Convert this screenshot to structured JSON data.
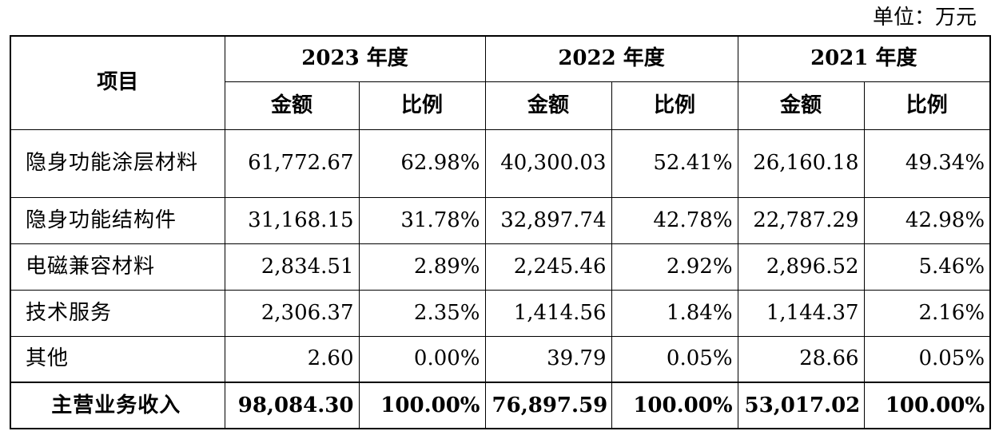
{
  "unit_label": "单位：万元",
  "header": {
    "item": "项目",
    "years": [
      "2023 年度",
      "2022 年度",
      "2021 年度"
    ],
    "amount": "金额",
    "ratio": "比例"
  },
  "rows": [
    {
      "label": "隐身功能涂层材料",
      "cells": [
        "61,772.67",
        "62.98%",
        "40,300.03",
        "52.41%",
        "26,160.18",
        "49.34%"
      ]
    },
    {
      "label": "隐身功能结构件",
      "cells": [
        "31,168.15",
        "31.78%",
        "32,897.74",
        "42.78%",
        "22,787.29",
        "42.98%"
      ]
    },
    {
      "label": "电磁兼容材料",
      "cells": [
        "2,834.51",
        "2.89%",
        "2,245.46",
        "2.92%",
        "2,896.52",
        "5.46%"
      ]
    },
    {
      "label": "技术服务",
      "cells": [
        "2,306.37",
        "2.35%",
        "1,414.56",
        "1.84%",
        "1,144.37",
        "2.16%"
      ]
    },
    {
      "label": "其他",
      "cells": [
        "2.60",
        "0.00%",
        "39.79",
        "0.05%",
        "28.66",
        "0.05%"
      ]
    }
  ],
  "total": {
    "label": "主营业务收入",
    "cells": [
      "98,084.30",
      "100.00%",
      "76,897.59",
      "100.00%",
      "53,017.02",
      "100.00%"
    ]
  }
}
